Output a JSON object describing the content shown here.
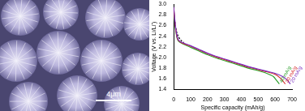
{
  "micrograph": {
    "scale_bar": "4μm"
  },
  "chart_data": {
    "type": "line",
    "x_label": "Specific capacity (mAh/g)",
    "y_label": "Voltage (V vs. Li/Li⁺)",
    "xlim": [
      0,
      700
    ],
    "xticks": [
      0,
      100,
      200,
      300,
      400,
      500,
      600,
      700
    ],
    "ylim": [
      1.4,
      3.0
    ],
    "yticks": [
      1.4,
      1.6,
      1.8,
      {
        "value": 2,
        "label": "2.0"
      },
      2.2,
      2.4,
      2.6,
      2.8,
      {
        "value": 3,
        "label": "3.0"
      }
    ],
    "grid": false,
    "series": [
      {
        "name": "20 mA/g",
        "color": "#7b2fbf",
        "line_style": "solid",
        "x": [
          0,
          10,
          20,
          30,
          50,
          100,
          150,
          200,
          250,
          300,
          350,
          400,
          450,
          500,
          550,
          600,
          650,
          675,
          690
        ],
        "values": [
          2.95,
          2.6,
          2.4,
          2.32,
          2.28,
          2.22,
          2.15,
          2.08,
          2.02,
          1.97,
          1.92,
          1.87,
          1.82,
          1.78,
          1.74,
          1.7,
          1.63,
          1.56,
          1.5
        ]
      },
      {
        "name": "30 mA/g",
        "color": "#d62728",
        "line_style": "solid",
        "x": [
          0,
          10,
          20,
          30,
          50,
          100,
          150,
          200,
          250,
          300,
          350,
          400,
          450,
          500,
          550,
          600,
          635,
          660
        ],
        "values": [
          2.93,
          2.58,
          2.38,
          2.31,
          2.27,
          2.21,
          2.14,
          2.07,
          2.01,
          1.96,
          1.91,
          1.86,
          1.81,
          1.77,
          1.73,
          1.68,
          1.6,
          1.5
        ]
      },
      {
        "name": "40 mA/g",
        "color": "#2ca02c",
        "line_style": "solid",
        "x": [
          0,
          10,
          20,
          30,
          50,
          100,
          150,
          200,
          250,
          300,
          350,
          400,
          450,
          500,
          550,
          590,
          610,
          625
        ],
        "values": [
          2.9,
          2.55,
          2.36,
          2.3,
          2.26,
          2.19,
          2.12,
          2.05,
          1.99,
          1.94,
          1.89,
          1.84,
          1.79,
          1.75,
          1.7,
          1.64,
          1.56,
          1.5
        ]
      },
      {
        "color": "#000000",
        "line_style": "dotted",
        "x": [
          0,
          10,
          20,
          30,
          40,
          50,
          60
        ],
        "values": [
          2.85,
          2.6,
          2.45,
          2.38,
          2.33,
          2.3,
          2.28
        ]
      }
    ]
  }
}
